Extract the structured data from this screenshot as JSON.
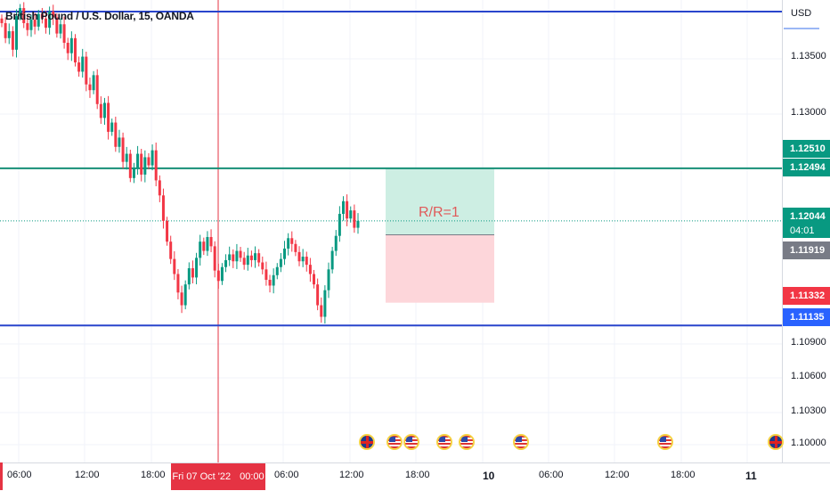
{
  "symbol_title": "British Pound / U.S. Dollar, 15, OANDA",
  "currency": "USD",
  "price_ticks": [
    "1.13500",
    "1.13000",
    "1.10900",
    "1.10600",
    "1.10300",
    "1.10000"
  ],
  "price_tags": {
    "level_green_top": {
      "value": "1.12510",
      "color": "#089981"
    },
    "level_green_line": {
      "value": "1.12494",
      "color": "#089981"
    },
    "last_price": {
      "value": "1.12044",
      "countdown": "04:01",
      "color": "#089981"
    },
    "crosshair_price": {
      "value": "1.11919",
      "color": "#787b86"
    },
    "red_level": {
      "value": "1.11332",
      "color": "#f23645"
    },
    "blue_level": {
      "value": "1.11135",
      "color": "#2962ff"
    }
  },
  "time_labels": [
    "06:00",
    "12:00",
    "18:00",
    "06:00",
    "12:00",
    "18:00",
    "10",
    "06:00",
    "12:00",
    "18:00",
    "11"
  ],
  "crosshair_time": {
    "date": "Fri 07 Oct '22",
    "time": "00:00"
  },
  "annotation": {
    "text": "R/R=1"
  },
  "event_icons": [
    "uk-flag",
    "us-flag",
    "us-flag",
    "us-flag",
    "us-flag",
    "us-flag",
    "us-flag",
    "uk-flag"
  ],
  "colors": {
    "up": "#089981",
    "down": "#f23645",
    "blue_line": "#2945cc",
    "green_line": "#168f77"
  },
  "chart_data": {
    "type": "candlestick",
    "title": "British Pound / U.S. Dollar, 15, OANDA",
    "ylim": [
      1.0995,
      1.1395
    ],
    "horizontal_levels": [
      1.1385,
      1.12494,
      1.11135
    ],
    "position_tool": {
      "target": 1.12494,
      "entry": 1.11919,
      "stop": 1.11332,
      "ratio": "R/R=1"
    },
    "closes": [
      1.1375,
      1.1362,
      1.1368,
      1.1352,
      1.1381,
      1.1388,
      1.1375,
      1.1369,
      1.1378,
      1.1372,
      1.1383,
      1.1379,
      1.1371,
      1.1385,
      1.138,
      1.1366,
      1.1374,
      1.1358,
      1.1349,
      1.1362,
      1.1341,
      1.1333,
      1.1346,
      1.1322,
      1.1317,
      1.133,
      1.1305,
      1.1293,
      1.1306,
      1.1281,
      1.1289,
      1.1268,
      1.1276,
      1.1255,
      1.1262,
      1.1241,
      1.1249,
      1.1262,
      1.1244,
      1.1259,
      1.1252,
      1.1265,
      1.1239,
      1.1226,
      1.1204,
      1.1186,
      1.1171,
      1.1158,
      1.1142,
      1.1131,
      1.1149,
      1.1163,
      1.1155,
      1.1172,
      1.1186,
      1.1178,
      1.119,
      1.1182,
      1.1161,
      1.1152,
      1.1164,
      1.117,
      1.1175,
      1.1169,
      1.1178,
      1.1172,
      1.1166,
      1.1174,
      1.117,
      1.1176,
      1.1168,
      1.1162,
      1.1153,
      1.1148,
      1.1157,
      1.1164,
      1.1171,
      1.118,
      1.1189,
      1.1184,
      1.1177,
      1.1169,
      1.1173,
      1.1166,
      1.1158,
      1.1149,
      1.1131,
      1.1121,
      1.1144,
      1.1162,
      1.1178,
      1.1191,
      1.121,
      1.1221,
      1.1206,
      1.1213,
      1.1198,
      1.1204
    ]
  }
}
